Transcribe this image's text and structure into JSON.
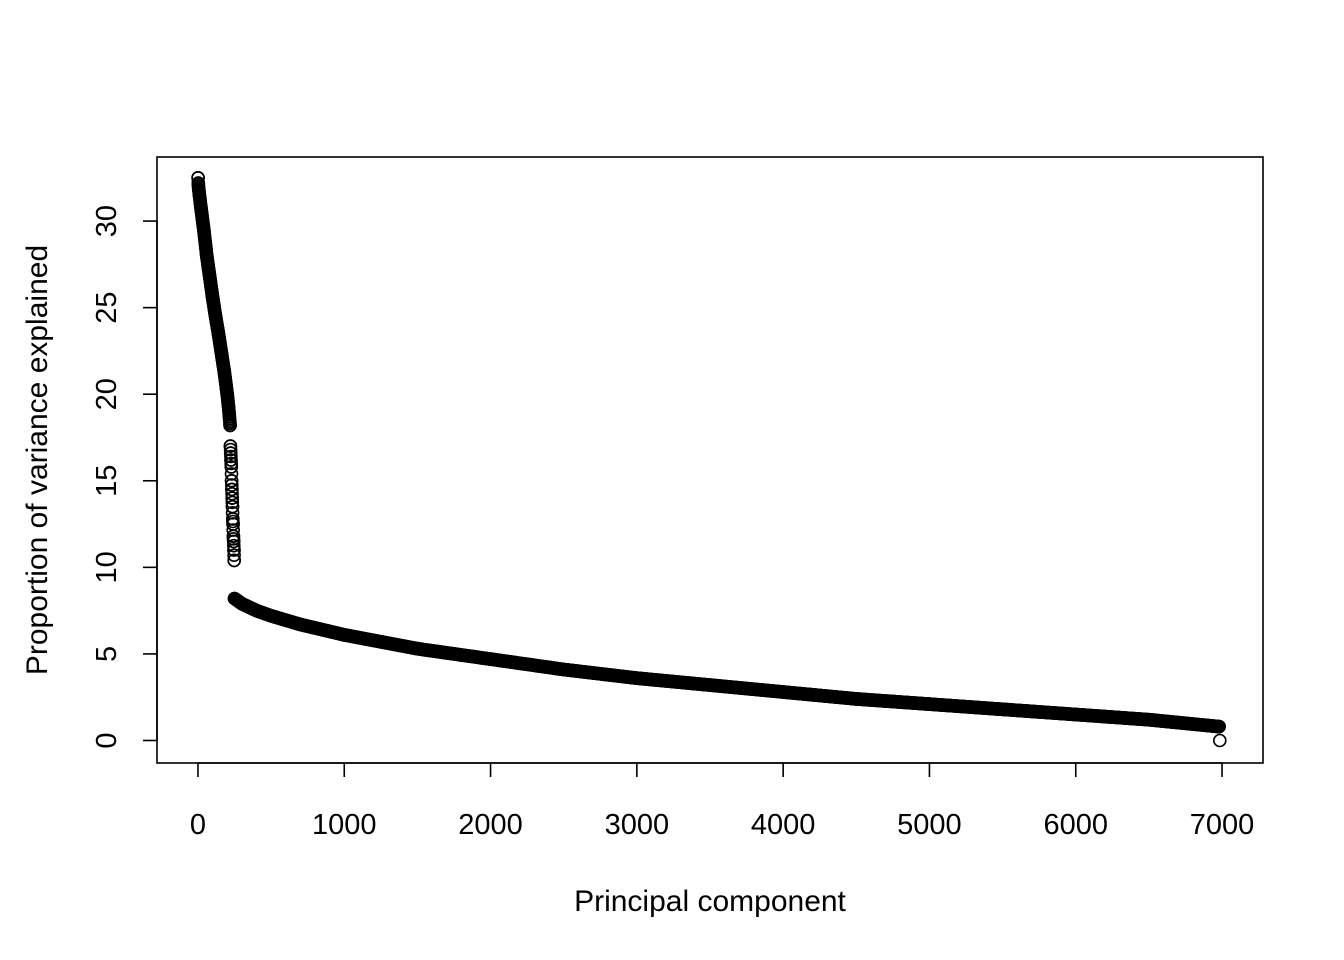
{
  "chart_data": {
    "type": "scatter",
    "title": "",
    "xlabel": "Principal component",
    "ylabel": "Proportion of variance explained",
    "xlim": [
      -280,
      7280
    ],
    "ylim": [
      -1.3,
      33.7
    ],
    "x_ticks": [
      0,
      1000,
      2000,
      3000,
      4000,
      5000,
      6000,
      7000
    ],
    "y_ticks": [
      0,
      5,
      10,
      15,
      20,
      25,
      30
    ],
    "x_tick_labels": [
      "0",
      "1000",
      "2000",
      "3000",
      "4000",
      "5000",
      "6000",
      "7000"
    ],
    "y_tick_labels": [
      "0",
      "5",
      "10",
      "15",
      "20",
      "25",
      "30"
    ],
    "marker": "open-circle",
    "grid": false,
    "legend": "none",
    "series": [
      {
        "segments": [
          {
            "x": [
              1,
              2,
              5,
              10,
              20,
              40,
              60,
              80,
              100,
              120,
              140,
              160,
              180,
              200,
              210,
              220
            ],
            "y": [
              32.5,
              32.2,
              31.9,
              31.5,
              30.8,
              29.5,
              28.0,
              26.8,
              25.6,
              24.5,
              23.5,
              22.4,
              21.3,
              20.0,
              19.2,
              18.2
            ]
          },
          {
            "x": [
              222,
              224,
              226,
              228,
              230,
              232,
              234,
              236,
              238,
              240,
              242,
              244,
              246,
              248
            ],
            "y": [
              17.0,
              16.6,
              16.2,
              15.8,
              15.0,
              14.5,
              14.0,
              13.5,
              12.8,
              12.5,
              11.8,
              11.5,
              11.0,
              10.4
            ]
          },
          {
            "x": [
              250,
              300,
              400,
              500,
              700,
              1000,
              1500,
              2000,
              2500,
              3000,
              3500,
              4000,
              4500,
              5000,
              5500,
              6000,
              6500,
              6980
            ],
            "y": [
              8.2,
              7.9,
              7.5,
              7.2,
              6.7,
              6.1,
              5.3,
              4.7,
              4.1,
              3.6,
              3.2,
              2.8,
              2.4,
              2.1,
              1.8,
              1.5,
              1.2,
              0.8
            ]
          }
        ],
        "outliers": {
          "x": [
            6985
          ],
          "y": [
            0.0
          ]
        }
      }
    ]
  }
}
